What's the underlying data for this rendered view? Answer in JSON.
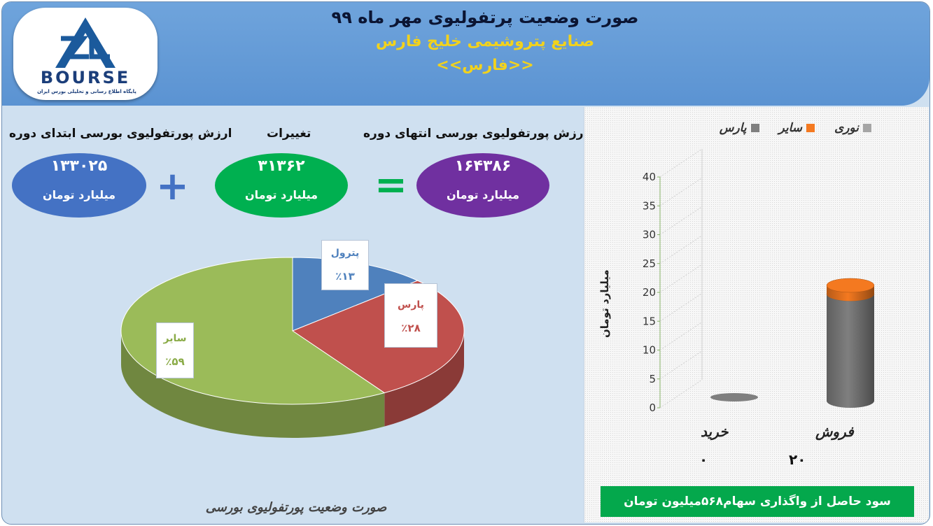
{
  "header": {
    "title": "صورت وضعیت پرتفولیوی مهر ماه ۹۹",
    "company": "صنایع پتروشیمی خلیج فارس",
    "symbol": "<<فارس>>"
  },
  "logo": {
    "text": "BOURSE",
    "subtext": "پایگاه اطلاع رسانی و تحلیلی بورس ایران"
  },
  "summary": {
    "end_label": "ارزش پورتفولیوی بورسی انتهای دوره",
    "change_label": "تغییرات",
    "start_label": "ارزش پورتفولیوی بورسی ابتدای دوره",
    "end_value": "۱۶۴۳۸۶",
    "change_value": "۳۱۳۶۲",
    "start_value": "۱۳۳۰۲۵",
    "unit": "میلیارد تومان",
    "colors": {
      "end": "#7030a0",
      "change": "#00b050",
      "start": "#4472c4",
      "operator": "#4472c4",
      "equals": "#00b050"
    }
  },
  "pie": {
    "footer": "صورت وضعیت پورتفولیوی بورسی"
  },
  "chart_data": [
    {
      "type": "pie",
      "title": "",
      "slices": [
        {
          "name": "پترول",
          "label": "٪۱۳",
          "value": 13,
          "color": "#4f81bd"
        },
        {
          "name": "پارس",
          "label": "٪۲۸",
          "value": 28,
          "color": "#c0504d"
        },
        {
          "name": "سایر",
          "label": "٪۵۹",
          "value": 59,
          "color": "#9bbb59"
        }
      ]
    },
    {
      "type": "bar",
      "title": "",
      "categories": [
        "فروش",
        "خرید"
      ],
      "category_values": [
        "۲۰",
        "۰"
      ],
      "series": [
        {
          "name": "پارس",
          "values": [
            18.5,
            0
          ],
          "color": "#7f7f7f"
        },
        {
          "name": "سایر",
          "values": [
            1.5,
            0
          ],
          "color": "#f47920"
        },
        {
          "name": "نوری",
          "values": [
            0,
            0
          ],
          "color": "#a5a5a5"
        }
      ],
      "ylabel": "میلیارد تومان",
      "ylim": [
        0,
        40
      ],
      "yticks": [
        0,
        5,
        10,
        15,
        20,
        25,
        30,
        35,
        40
      ],
      "legend": "top",
      "grid": false
    }
  ],
  "footer_note": "سود حاصل از واگذاری سهام۵۶۸میلیون تومان"
}
